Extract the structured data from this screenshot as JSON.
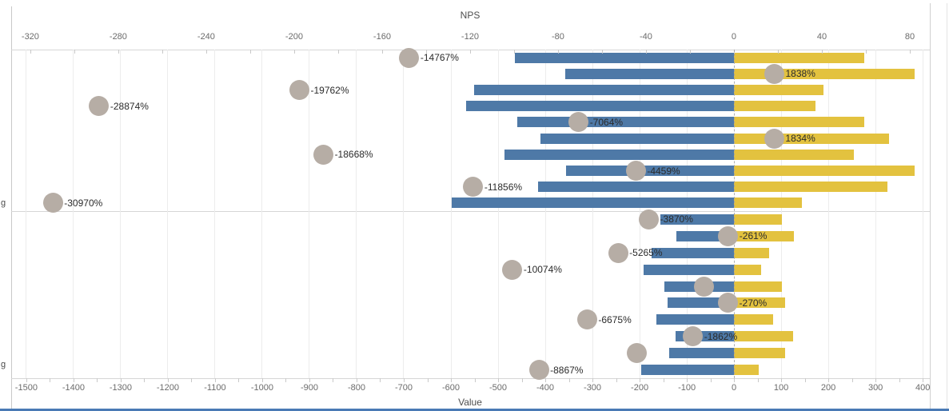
{
  "colors": {
    "negative_bar": "#4e79a7",
    "positive_bar": "#e3c23f",
    "circle": "#b6ada5",
    "bottom_strip": "#4a7ab5"
  },
  "row_groups": {
    "panel1_label": "g",
    "panel2_label": "g"
  },
  "chart_data": {
    "type": "bar",
    "subtype": "diverging horizontal bars with NPS circle overlay",
    "grid": true,
    "top_axis": {
      "title": "NPS",
      "ticks": [
        -320,
        -280,
        -240,
        -200,
        -160,
        -120,
        -80,
        -40,
        0,
        40,
        80
      ],
      "minor_step": 20,
      "range": [
        -328.7,
        89.1
      ]
    },
    "bottom_axis": {
      "title": "Value",
      "ticks": [
        -1500,
        -1400,
        -1300,
        -1200,
        -1100,
        -1000,
        -900,
        -800,
        -700,
        -600,
        -500,
        -400,
        -300,
        -200,
        -100,
        0,
        100,
        200,
        300,
        400
      ],
      "minor_step": 50,
      "range": [
        -1532,
        415
      ]
    },
    "panels": [
      {
        "group_label": "g",
        "rows": [
          {
            "neg": -464,
            "pos": 276,
            "nps": -147.67,
            "label": "-14767%"
          },
          {
            "neg": -358,
            "pos": 383,
            "nps": 18.38,
            "label": "1838%"
          },
          {
            "neg": -551,
            "pos": 190,
            "nps": -197.62,
            "label": "-19762%"
          },
          {
            "neg": -568,
            "pos": 173,
            "nps": -288.74,
            "label": "-28874%"
          },
          {
            "neg": -459,
            "pos": 276,
            "nps": -70.64,
            "label": "-7064%"
          },
          {
            "neg": -410,
            "pos": 329,
            "nps": 18.34,
            "label": "1834%"
          },
          {
            "neg": -487,
            "pos": 254,
            "nps": -186.68,
            "label": "-18668%"
          },
          {
            "neg": -356,
            "pos": 383,
            "nps": -44.59,
            "label": "-4459%"
          },
          {
            "neg": -415,
            "pos": 325,
            "nps": -118.56,
            "label": "-11856%"
          },
          {
            "neg": -598,
            "pos": 144,
            "nps": -309.7,
            "label": "-30970%"
          }
        ]
      },
      {
        "group_label": "g",
        "rows": [
          {
            "neg": -156,
            "pos": 102,
            "nps": -38.7,
            "label": "-3870%"
          },
          {
            "neg": -122,
            "pos": 127,
            "nps": -2.61,
            "label": "-261%"
          },
          {
            "neg": -175,
            "pos": 75,
            "nps": -52.65,
            "label": "-5265%"
          },
          {
            "neg": -192,
            "pos": 58,
            "nps": -100.74,
            "label": "-10074%"
          },
          {
            "neg": -147,
            "pos": 102,
            "nps": -13.5,
            "label": ""
          },
          {
            "neg": -141,
            "pos": 108,
            "nps": -2.7,
            "label": "-270%"
          },
          {
            "neg": -164,
            "pos": 83,
            "nps": -66.75,
            "label": "-6675%"
          },
          {
            "neg": -124,
            "pos": 125,
            "nps": -18.62,
            "label": "-1862%"
          },
          {
            "neg": -137,
            "pos": 108,
            "nps": -44.0,
            "label": ""
          },
          {
            "neg": -197,
            "pos": 53,
            "nps": -88.67,
            "label": "-8867%"
          }
        ]
      }
    ]
  }
}
